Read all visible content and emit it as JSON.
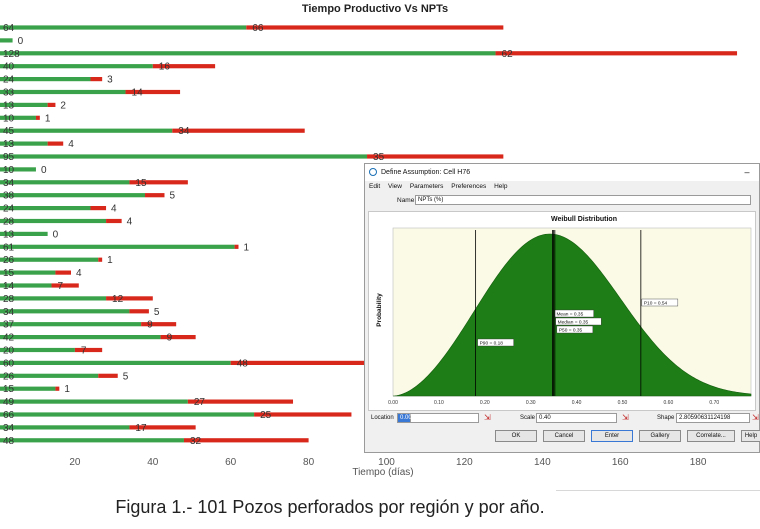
{
  "chart_data": {
    "type": "bar",
    "stacked": true,
    "orientation": "horizontal",
    "title": "Tiempo Productivo Vs NPTs",
    "xlabel": "Tiempo (días)",
    "xlim": [
      0,
      197
    ],
    "xticks": [
      20,
      40,
      60,
      80,
      100,
      120,
      140,
      160,
      180
    ],
    "colors": {
      "productive": "#3aa24a",
      "npt": "#d8281c",
      "label": "#333333"
    },
    "series": [
      {
        "values": [
          64,
          4,
          128,
          40,
          24,
          33,
          13,
          10,
          45,
          13,
          95,
          10,
          34,
          38,
          24,
          28,
          13,
          61,
          26,
          15,
          14,
          28,
          34,
          37,
          42,
          20,
          60,
          26,
          15,
          49,
          66,
          34,
          48
        ]
      },
      {
        "values": [
          66,
          0,
          62,
          16,
          3,
          14,
          2,
          1,
          34,
          4,
          35,
          0,
          15,
          5,
          4,
          4,
          0,
          1,
          1,
          4,
          7,
          12,
          5,
          9,
          9,
          7,
          48,
          5,
          1,
          27,
          25,
          17,
          32
        ]
      }
    ],
    "data_labels": [
      {
        "productive": "64",
        "npt": "66"
      },
      {
        "productive": "",
        "npt": "0"
      },
      {
        "productive": "128",
        "npt": "62"
      },
      {
        "productive": "40",
        "npt": "16"
      },
      {
        "productive": "24",
        "npt": "3"
      },
      {
        "productive": "33",
        "npt": "14"
      },
      {
        "productive": "13",
        "npt": "2"
      },
      {
        "productive": "10",
        "npt": "1"
      },
      {
        "productive": "45",
        "npt": "34"
      },
      {
        "productive": "13",
        "npt": "4"
      },
      {
        "productive": "95",
        "npt": "35"
      },
      {
        "productive": "10",
        "npt": "0"
      },
      {
        "productive": "34",
        "npt": "15"
      },
      {
        "productive": "38",
        "npt": "5"
      },
      {
        "productive": "24",
        "npt": "4"
      },
      {
        "productive": "28",
        "npt": "4"
      },
      {
        "productive": "13",
        "npt": "0"
      },
      {
        "productive": "61",
        "npt": "1"
      },
      {
        "productive": "26",
        "npt": "1"
      },
      {
        "productive": "15",
        "npt": "4"
      },
      {
        "productive": "14",
        "npt": "7"
      },
      {
        "productive": "28",
        "npt": "12"
      },
      {
        "productive": "34",
        "npt": "5"
      },
      {
        "productive": "37",
        "npt": "9"
      },
      {
        "productive": "42",
        "npt": "9"
      },
      {
        "productive": "20",
        "npt": "7"
      },
      {
        "productive": "60",
        "npt": "48"
      },
      {
        "productive": "26",
        "npt": "5"
      },
      {
        "productive": "15",
        "npt": "1"
      },
      {
        "productive": "49",
        "npt": "27"
      },
      {
        "productive": "66",
        "npt": "25"
      },
      {
        "productive": "34",
        "npt": "17"
      },
      {
        "productive": "48",
        "npt": "32"
      }
    ]
  },
  "dialog": {
    "title": "Define Assumption: Cell H76",
    "menu": [
      "Edit",
      "View",
      "Parameters",
      "Preferences",
      "Help"
    ],
    "name_label": "Name:",
    "name_value": "NPTs (%)",
    "plot": {
      "title": "Weibull Distribution",
      "ylabel": "Probability",
      "colors": {
        "fill": "#1e7d16",
        "background": "#fbfae6",
        "line": "#000000"
      },
      "xlim": [
        0,
        0.78
      ],
      "xticks": [
        "0.00",
        "0.10",
        "0.20",
        "0.30",
        "0.40",
        "0.50",
        "0.60",
        "0.70"
      ],
      "tick_values": [
        0,
        0.1,
        0.2,
        0.3,
        0.4,
        0.5,
        0.6,
        0.7
      ],
      "markers": [
        {
          "value": 0.18,
          "label": "P90 = 0.18"
        },
        {
          "value": 0.35,
          "label": "Mean = 0.35"
        },
        {
          "value": 0.35,
          "label": "Median = 0.35"
        },
        {
          "value": 0.35,
          "label": "P50 = 0.35"
        },
        {
          "value": 0.54,
          "label": "P10 = 0.54"
        }
      ],
      "weibull": {
        "location": 0.0,
        "scale": 0.4,
        "shape": 2.80590631124198
      }
    },
    "params": {
      "location_label": "Location",
      "location_value": "0.00",
      "scale_label": "Scale",
      "scale_value": "0.40",
      "shape_label": "Shape",
      "shape_value": "2.80590631124198"
    },
    "buttons": [
      "OK",
      "Cancel",
      "Enter",
      "Gallery",
      "Correlate...",
      "Help"
    ]
  },
  "caption": "Figura 1.- 101 Pozos perforados por región y por año."
}
